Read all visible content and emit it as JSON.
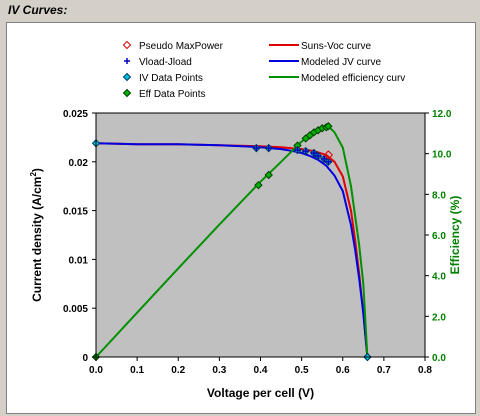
{
  "panel": {
    "title": "IV Curves:"
  },
  "chart_data": {
    "type": "line",
    "xlabel": "Voltage per cell (V)",
    "ylabel_main": "Current density (A/cm",
    "ylabel_sup": "2",
    "ylabel_close": ")",
    "y2label": "Efficiency (%)",
    "xlim": [
      0,
      0.8
    ],
    "ylim": [
      0,
      0.025
    ],
    "y2lim": [
      0,
      12
    ],
    "x_ticks": [
      "0.0",
      "0.1",
      "0.2",
      "0.3",
      "0.4",
      "0.5",
      "0.6",
      "0.7",
      "0.8"
    ],
    "y_ticks": [
      "0",
      "0.005",
      "0.01",
      "0.015",
      "0.02",
      "0.025"
    ],
    "y2_ticks": [
      "0.0",
      "2.0",
      "4.0",
      "6.0",
      "8.0",
      "10.0",
      "12.0"
    ],
    "colors": {
      "suns_voc": "#e00000",
      "modeled_jv": "#0000e0",
      "modeled_eff": "#009000",
      "pseudo_marker": "#e00000",
      "vload_marker": "#0000c0",
      "iv_point": "#00c0e0",
      "eff_point": "#00b000",
      "eff_axis": "#008000",
      "plot_bg": "#c0c0c0"
    },
    "legend": [
      {
        "key": "pseudo",
        "label": "Pseudo MaxPower",
        "kind": "diamond-open"
      },
      {
        "key": "suns_voc",
        "label": "Suns-Voc curve",
        "kind": "line"
      },
      {
        "key": "vload",
        "label": "Vload-Jload",
        "kind": "plus"
      },
      {
        "key": "modeled_jv",
        "label": "Modeled JV curve",
        "kind": "line"
      },
      {
        "key": "iv",
        "label": "IV Data Points",
        "kind": "diamond-filled"
      },
      {
        "key": "modeled_eff",
        "label": "Modeled efficiency curv",
        "kind": "line"
      },
      {
        "key": "eff",
        "label": "Eff Data Points",
        "kind": "diamond-filled-green"
      }
    ],
    "series": {
      "suns_voc": {
        "x": [
          0.0,
          0.1,
          0.2,
          0.3,
          0.4,
          0.45,
          0.5,
          0.53,
          0.56,
          0.58,
          0.6,
          0.62,
          0.63,
          0.64,
          0.65,
          0.66
        ],
        "y": [
          0.0219,
          0.0218,
          0.0218,
          0.0217,
          0.0216,
          0.0215,
          0.0213,
          0.0211,
          0.0207,
          0.02,
          0.0185,
          0.015,
          0.012,
          0.0085,
          0.0045,
          0.0
        ]
      },
      "modeled_jv": {
        "x": [
          0.0,
          0.1,
          0.2,
          0.3,
          0.4,
          0.45,
          0.48,
          0.5,
          0.52,
          0.54,
          0.56,
          0.58,
          0.6,
          0.62,
          0.63,
          0.64,
          0.65,
          0.66
        ],
        "y": [
          0.0219,
          0.0218,
          0.0218,
          0.0217,
          0.0215,
          0.0213,
          0.0211,
          0.0209,
          0.0206,
          0.0202,
          0.0196,
          0.0186,
          0.017,
          0.0135,
          0.011,
          0.008,
          0.0045,
          0.0
        ]
      },
      "modeled_eff": {
        "x": [
          0.0,
          0.1,
          0.2,
          0.3,
          0.4,
          0.45,
          0.5,
          0.53,
          0.55,
          0.56,
          0.57,
          0.58,
          0.6,
          0.62,
          0.64,
          0.65,
          0.66
        ],
        "y2": [
          0.0,
          2.18,
          4.36,
          6.51,
          8.62,
          9.6,
          10.6,
          11.05,
          11.25,
          11.3,
          11.25,
          11.05,
          10.3,
          8.4,
          5.5,
          3.6,
          0.0
        ]
      },
      "iv_points": {
        "x": [
          0.0,
          0.39,
          0.42,
          0.49,
          0.51,
          0.53,
          0.54,
          0.555,
          0.565,
          0.66
        ],
        "y": [
          0.0219,
          0.0214,
          0.0214,
          0.0212,
          0.0211,
          0.0209,
          0.0206,
          0.0203,
          0.02,
          0.0
        ]
      },
      "eff_points": {
        "x": [
          0.0,
          0.395,
          0.42,
          0.49,
          0.51,
          0.52,
          0.53,
          0.54,
          0.55,
          0.56,
          0.565,
          0.66
        ],
        "y2": [
          0.0,
          8.45,
          8.95,
          10.4,
          10.75,
          10.9,
          11.05,
          11.15,
          11.25,
          11.3,
          11.35,
          0.0
        ]
      },
      "pseudo_maxpower": {
        "x": [
          0.565
        ],
        "y": [
          0.0207
        ]
      },
      "vload_jload": {
        "x": [
          0.39,
          0.42,
          0.49,
          0.51,
          0.53,
          0.54,
          0.555,
          0.565
        ],
        "y": [
          0.0214,
          0.0214,
          0.0212,
          0.0211,
          0.0209,
          0.0206,
          0.0203,
          0.02
        ]
      }
    }
  }
}
